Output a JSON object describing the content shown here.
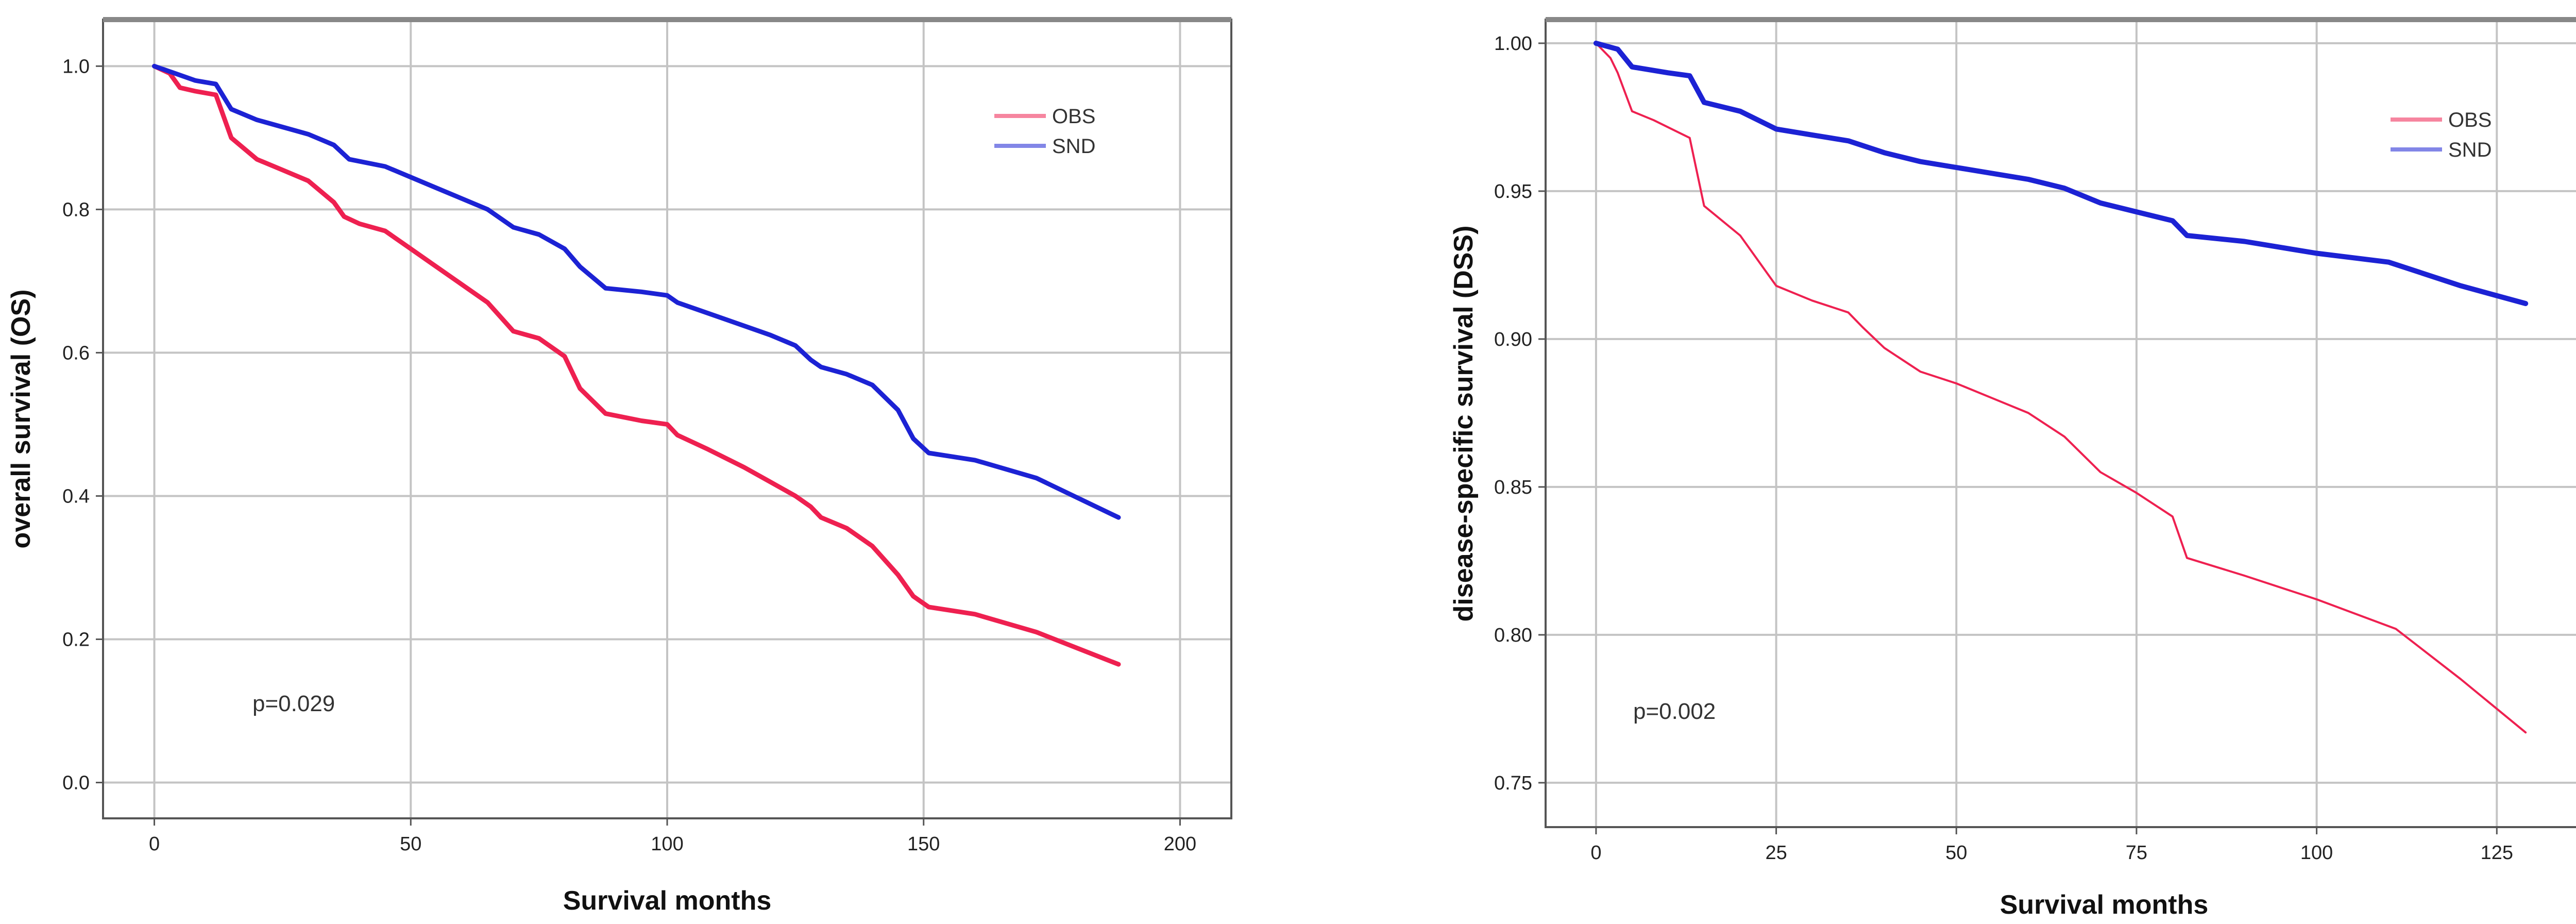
{
  "chart_data": [
    {
      "type": "line",
      "xlabel": "Survival months",
      "ylabel": "overall survival (OS)",
      "xlim": [
        -10,
        210
      ],
      "ylim": [
        -0.05,
        1.065
      ],
      "xticks": [
        0,
        50,
        100,
        150,
        200
      ],
      "xtick_labels": [
        "0",
        "50",
        "100",
        "150",
        "200"
      ],
      "yticks": [
        0.0,
        0.2,
        0.4,
        0.6,
        0.8,
        1.0
      ],
      "ytick_labels": [
        "0.0",
        "0.2",
        "0.4",
        "0.6",
        "0.8",
        "1.0"
      ],
      "grid": true,
      "legend_placement": "top-right",
      "annotation": "p=0.029",
      "series": [
        {
          "name": "OBS",
          "color": "#ee2050",
          "x": [
            0,
            3,
            5,
            8,
            12,
            15,
            20,
            25,
            30,
            35,
            37,
            40,
            45,
            50,
            55,
            60,
            65,
            70,
            75,
            80,
            83,
            88,
            95,
            100,
            102,
            108,
            115,
            120,
            125,
            128,
            130,
            135,
            140,
            145,
            148,
            151,
            160,
            172,
            188
          ],
          "y": [
            1.0,
            0.99,
            0.97,
            0.965,
            0.96,
            0.9,
            0.87,
            0.855,
            0.84,
            0.81,
            0.79,
            0.78,
            0.77,
            0.745,
            0.72,
            0.695,
            0.67,
            0.63,
            0.62,
            0.595,
            0.55,
            0.515,
            0.505,
            0.5,
            0.485,
            0.465,
            0.44,
            0.42,
            0.4,
            0.385,
            0.37,
            0.355,
            0.33,
            0.29,
            0.26,
            0.245,
            0.235,
            0.21,
            0.165
          ]
        },
        {
          "name": "SND",
          "color": "#1c22d4",
          "x": [
            0,
            4,
            8,
            12,
            15,
            20,
            25,
            30,
            35,
            38,
            45,
            50,
            55,
            60,
            65,
            70,
            75,
            80,
            83,
            88,
            95,
            100,
            102,
            110,
            120,
            125,
            128,
            130,
            135,
            140,
            145,
            148,
            151,
            160,
            172,
            188
          ],
          "y": [
            1.0,
            0.99,
            0.98,
            0.975,
            0.94,
            0.925,
            0.915,
            0.905,
            0.89,
            0.87,
            0.86,
            0.845,
            0.83,
            0.815,
            0.8,
            0.775,
            0.765,
            0.745,
            0.72,
            0.69,
            0.685,
            0.68,
            0.67,
            0.65,
            0.625,
            0.61,
            0.59,
            0.58,
            0.57,
            0.555,
            0.52,
            0.48,
            0.46,
            0.45,
            0.425,
            0.37
          ]
        }
      ]
    },
    {
      "type": "line",
      "xlabel": "Survival months",
      "ylabel": "disease-specific survival (DSS)",
      "xlim": [
        -7,
        148
      ],
      "ylim": [
        0.735,
        1.008
      ],
      "xticks": [
        0,
        25,
        50,
        75,
        100,
        125
      ],
      "xtick_labels": [
        "0",
        "25",
        "50",
        "75",
        "100",
        "125"
      ],
      "yticks": [
        0.75,
        0.8,
        0.85,
        0.9,
        0.95,
        1.0
      ],
      "ytick_labels": [
        "0.75",
        "0.80",
        "0.85",
        "0.90",
        "0.95",
        "1.00"
      ],
      "grid": true,
      "legend_placement": "top-right",
      "annotation": "p=0.002",
      "series": [
        {
          "name": "OBS",
          "color": "#ee2050",
          "x": [
            0,
            2,
            3,
            5,
            8,
            13,
            15,
            20,
            25,
            30,
            35,
            37,
            40,
            45,
            50,
            55,
            60,
            65,
            70,
            75,
            80,
            82,
            90,
            100,
            111,
            120,
            129
          ],
          "y": [
            1.0,
            0.995,
            0.99,
            0.977,
            0.974,
            0.968,
            0.945,
            0.935,
            0.918,
            0.913,
            0.909,
            0.904,
            0.897,
            0.889,
            0.885,
            0.88,
            0.875,
            0.867,
            0.855,
            0.848,
            0.84,
            0.826,
            0.82,
            0.812,
            0.802,
            0.785,
            0.767
          ]
        },
        {
          "name": "SND",
          "color": "#1c22d4",
          "x": [
            0,
            3,
            5,
            10,
            13,
            15,
            20,
            25,
            30,
            35,
            40,
            45,
            50,
            55,
            60,
            65,
            70,
            75,
            80,
            82,
            90,
            100,
            110,
            120,
            129
          ],
          "y": [
            1.0,
            0.998,
            0.992,
            0.99,
            0.989,
            0.98,
            0.977,
            0.971,
            0.969,
            0.967,
            0.963,
            0.96,
            0.958,
            0.956,
            0.954,
            0.951,
            0.946,
            0.943,
            0.94,
            0.935,
            0.933,
            0.929,
            0.926,
            0.918,
            0.912
          ]
        }
      ]
    }
  ]
}
